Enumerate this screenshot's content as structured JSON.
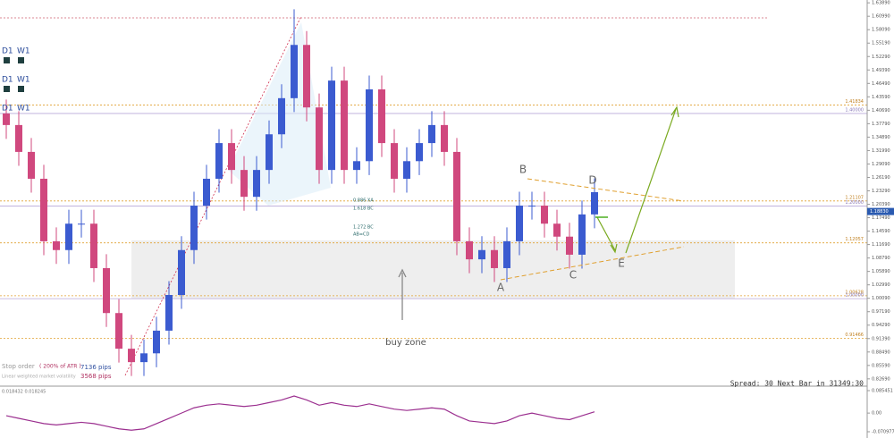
{
  "chart_data": {
    "type": "candlestick",
    "open": [
      1.4,
      1.375,
      1.317,
      1.259,
      1.124,
      1.105,
      1.162,
      1.162,
      1.066,
      0.969,
      0.892,
      0.863,
      0.882,
      0.931,
      1.008,
      1.105,
      1.201,
      1.259,
      1.336,
      1.278,
      1.22,
      1.278,
      1.355,
      1.433,
      1.548,
      1.413,
      1.278,
      1.471,
      1.278,
      1.297,
      1.452,
      1.336,
      1.259,
      1.297,
      1.336,
      1.375,
      1.317,
      1.124,
      1.085,
      1.105,
      1.066,
      1.124,
      1.201,
      1.201,
      1.162,
      1.134,
      1.095,
      1.182
    ],
    "high": [
      1.43,
      1.405,
      1.347,
      1.289,
      1.154,
      1.192,
      1.192,
      1.192,
      1.096,
      0.999,
      0.922,
      0.912,
      0.961,
      1.038,
      1.135,
      1.231,
      1.289,
      1.366,
      1.366,
      1.308,
      1.308,
      1.385,
      1.463,
      1.625,
      1.578,
      1.443,
      1.501,
      1.501,
      1.327,
      1.482,
      1.482,
      1.366,
      1.327,
      1.366,
      1.405,
      1.405,
      1.347,
      1.154,
      1.135,
      1.135,
      1.154,
      1.231,
      1.231,
      1.231,
      1.192,
      1.164,
      1.212,
      1.26
    ],
    "low": [
      1.345,
      1.287,
      1.229,
      1.094,
      1.075,
      1.075,
      1.132,
      1.036,
      0.939,
      0.862,
      0.833,
      0.833,
      0.852,
      0.901,
      0.978,
      1.075,
      1.171,
      1.229,
      1.248,
      1.19,
      1.19,
      1.248,
      1.325,
      1.403,
      1.383,
      1.248,
      1.248,
      1.248,
      1.248,
      1.267,
      1.306,
      1.229,
      1.229,
      1.267,
      1.306,
      1.287,
      1.094,
      1.055,
      1.055,
      1.036,
      1.036,
      1.094,
      1.171,
      1.132,
      1.104,
      1.065,
      1.065,
      1.152
    ],
    "close": [
      1.375,
      1.317,
      1.259,
      1.124,
      1.105,
      1.162,
      1.162,
      1.066,
      0.969,
      0.892,
      0.863,
      0.882,
      0.931,
      1.008,
      1.105,
      1.201,
      1.259,
      1.336,
      1.278,
      1.22,
      1.278,
      1.355,
      1.433,
      1.548,
      1.413,
      1.278,
      1.471,
      1.278,
      1.297,
      1.452,
      1.336,
      1.259,
      1.297,
      1.336,
      1.375,
      1.317,
      1.124,
      1.085,
      1.105,
      1.066,
      1.124,
      1.201,
      1.201,
      1.162,
      1.134,
      1.095,
      1.182,
      1.23
    ],
    "up_color": "#3b5bd0",
    "down_color": "#d0487e",
    "ylim": [
      0.815,
      1.645
    ],
    "yticks": [
      {
        "value": 1.6389,
        "label": "1.63890"
      },
      {
        "value": 1.6099,
        "label": "1.60990"
      },
      {
        "value": 1.5809,
        "label": "1.58090"
      },
      {
        "value": 1.5519,
        "label": "1.55190"
      },
      {
        "value": 1.5229,
        "label": "1.52290"
      },
      {
        "value": 1.4939,
        "label": "1.49390"
      },
      {
        "value": 1.4649,
        "label": "1.46490"
      },
      {
        "value": 1.4359,
        "label": "1.43590"
      },
      {
        "value": 1.4069,
        "label": "1.40690"
      },
      {
        "value": 1.3779,
        "label": "1.37790"
      },
      {
        "value": 1.3489,
        "label": "1.34890"
      },
      {
        "value": 1.3199,
        "label": "1.31990"
      },
      {
        "value": 1.2909,
        "label": "1.29090"
      },
      {
        "value": 1.2619,
        "label": "1.26190"
      },
      {
        "value": 1.2329,
        "label": "1.23290"
      },
      {
        "value": 1.2039,
        "label": "1.20390"
      },
      {
        "value": 1.1749,
        "label": "1.17490"
      },
      {
        "value": 1.1459,
        "label": "1.14590"
      },
      {
        "value": 1.1169,
        "label": "1.11690"
      },
      {
        "value": 1.0879,
        "label": "1.08790"
      },
      {
        "value": 1.0589,
        "label": "1.05890"
      },
      {
        "value": 1.0299,
        "label": "1.02990"
      },
      {
        "value": 1.0009,
        "label": "1.00090"
      },
      {
        "value": 0.9719,
        "label": "0.97190"
      },
      {
        "value": 0.9429,
        "label": "0.94290"
      },
      {
        "value": 0.9139,
        "label": "0.91390"
      },
      {
        "value": 0.8849,
        "label": "0.88490"
      },
      {
        "value": 0.8559,
        "label": "0.85590"
      },
      {
        "value": 0.8269,
        "label": "0.82690"
      }
    ],
    "current_price": {
      "value": 1.1883,
      "label": "1.18830"
    },
    "levels": [
      {
        "value": 1.41834,
        "color": "#e0a030",
        "dashed": true
      },
      {
        "value": 1.4,
        "label": "1.40000",
        "color": "#b8a8d8",
        "dashed": false
      },
      {
        "value": 1.21107,
        "color": "#e0a030",
        "dashed": true
      },
      {
        "value": 1.2,
        "label": "1.20000",
        "color": "#b8a8d8",
        "dashed": false
      },
      {
        "value": 1.12057,
        "color": "#e0a030",
        "dashed": true
      },
      {
        "value": 1.00628,
        "color": "#e0a030",
        "dashed": true
      },
      {
        "value": 1.0,
        "label": "1.00000",
        "color": "#b8a8d8",
        "dashed": false
      },
      {
        "value": 0.91466,
        "color": "#e0a030",
        "dashed": true
      }
    ],
    "buy_zone": {
      "label": "buy zone",
      "low": 1.0,
      "high": 1.126
    },
    "pattern_points": [
      "A",
      "B",
      "C",
      "D",
      "E"
    ],
    "fib_labels": [
      "0.886 XA",
      "1.618 BC",
      "1.272 BC",
      "AB=CD"
    ],
    "timeframe_labels": [
      "D1",
      "W1",
      "D1",
      "W1",
      "D1",
      "W1"
    ],
    "info_texts": [
      "Stop order",
      "( 200% of ATR )",
      "7136 pips",
      "Linear weighted market volatility",
      "3568 pips"
    ],
    "status": "Spread: 30  Next Bar in 31349:30",
    "oscillator": {
      "label": "0.018432 0.018245",
      "color": "#9b2f8f",
      "ylim": [
        -0.070977,
        0.085451
      ],
      "yticks": [
        0.085451,
        {
          "value": 0,
          "label": "0.00"
        },
        -0.070977
      ],
      "values": [
        -0.01,
        -0.02,
        -0.03,
        -0.04,
        -0.045,
        -0.04,
        -0.035,
        -0.04,
        -0.05,
        -0.06,
        -0.065,
        -0.06,
        -0.04,
        -0.02,
        0.0,
        0.02,
        0.03,
        0.035,
        0.03,
        0.025,
        0.03,
        0.04,
        0.05,
        0.065,
        0.05,
        0.03,
        0.04,
        0.03,
        0.025,
        0.035,
        0.025,
        0.015,
        0.01,
        0.015,
        0.02,
        0.015,
        -0.01,
        -0.03,
        -0.035,
        -0.04,
        -0.03,
        -0.01,
        0.0,
        -0.01,
        -0.02,
        -0.025,
        -0.01,
        0.005
      ]
    }
  }
}
